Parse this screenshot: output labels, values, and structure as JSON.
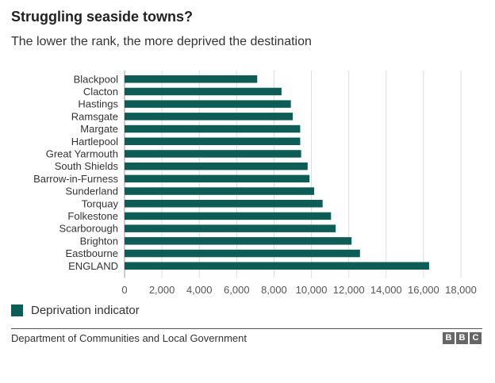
{
  "header": {
    "title": "Struggling seaside towns?",
    "subtitle": "The lower the rank, the more deprived the destination"
  },
  "chart_data": {
    "type": "bar",
    "orientation": "horizontal",
    "categories": [
      "Blackpool",
      "Clacton",
      "Hastings",
      "Ramsgate",
      "Margate",
      "Hartlepool",
      "Great Yarmouth",
      "South Shields",
      "Barrow-in-Furness",
      "Sunderland",
      "Torquay",
      "Folkestone",
      "Scarborough",
      "Brighton",
      "Eastbourne",
      "ENGLAND"
    ],
    "series": [
      {
        "name": "Deprivation indicator",
        "values": [
          7100,
          8400,
          8900,
          9000,
          9400,
          9400,
          9450,
          9800,
          9900,
          10150,
          10600,
          11050,
          11300,
          12150,
          12600,
          16300
        ],
        "color": "#0e5c56"
      }
    ],
    "xlim": [
      0,
      18000
    ],
    "xticks": [
      0,
      2000,
      4000,
      6000,
      8000,
      10000,
      12000,
      14000,
      16000,
      18000
    ],
    "xtick_labels": [
      "0",
      "2,000",
      "4,000",
      "6,000",
      "8,000",
      "10,000",
      "12,000",
      "14,000",
      "16,000",
      "18,000"
    ],
    "grid": "vertical",
    "legend_position": "bottom-left"
  },
  "legend": {
    "label": "Deprivation indicator",
    "color": "#0e5c56"
  },
  "footer": {
    "source": "Department of Communities and Local Government",
    "logo_letters": [
      "B",
      "B",
      "C"
    ]
  }
}
